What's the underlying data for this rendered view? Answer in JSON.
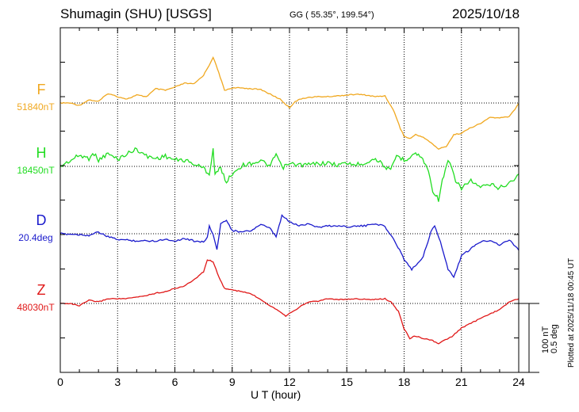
{
  "header": {
    "station": "Shumagin (SHU)  [USGS]",
    "coords": "GG ( 55.35°, 199.54°)",
    "date": "2025/10/18"
  },
  "footer": {
    "plotted": "Plotted at 2025/11/18 00:45 UT"
  },
  "chart_data": {
    "type": "line",
    "xlabel": "U T (hour)",
    "xlim": [
      0,
      24
    ],
    "xticks": [
      0,
      3,
      6,
      9,
      12,
      15,
      18,
      21,
      24
    ],
    "scale_bar": {
      "line1": "100 nT",
      "line2": "0.5 deg"
    },
    "colors": {
      "F": "#f0a820",
      "H": "#22dd22",
      "D": "#1a1acc",
      "Z": "#e01818"
    },
    "series": [
      {
        "name": "F",
        "baseline_label": "51840nT",
        "points": [
          [
            0,
            0
          ],
          [
            0.5,
            0
          ],
          [
            1,
            3
          ],
          [
            1.5,
            -4
          ],
          [
            2,
            -2
          ],
          [
            2.5,
            -12
          ],
          [
            3,
            -8
          ],
          [
            3.5,
            -5
          ],
          [
            4,
            -10
          ],
          [
            4.5,
            -8
          ],
          [
            5,
            -18
          ],
          [
            5.5,
            -16
          ],
          [
            6,
            -20
          ],
          [
            6.5,
            -25
          ],
          [
            7,
            -24
          ],
          [
            7.5,
            -35
          ],
          [
            7.8,
            -48
          ],
          [
            8,
            -58
          ],
          [
            8.3,
            -38
          ],
          [
            8.6,
            -16
          ],
          [
            9,
            -19
          ],
          [
            9.5,
            -19
          ],
          [
            10,
            -18
          ],
          [
            10.5,
            -17
          ],
          [
            11,
            -11
          ],
          [
            11.5,
            -5
          ],
          [
            12,
            6
          ],
          [
            12.3,
            -2
          ],
          [
            12.7,
            -6
          ],
          [
            13,
            -7
          ],
          [
            13.5,
            -8
          ],
          [
            14,
            -8
          ],
          [
            14.5,
            -9
          ],
          [
            15,
            -10
          ],
          [
            15.5,
            -11
          ],
          [
            16,
            -10
          ],
          [
            16.5,
            -8
          ],
          [
            17,
            -9
          ],
          [
            17.2,
            -1
          ],
          [
            17.5,
            12
          ],
          [
            17.8,
            32
          ],
          [
            18,
            42
          ],
          [
            18.3,
            45
          ],
          [
            18.6,
            40
          ],
          [
            19,
            43
          ],
          [
            19.5,
            52
          ],
          [
            19.8,
            58
          ],
          [
            20.2,
            55
          ],
          [
            20.6,
            40
          ],
          [
            21,
            38
          ],
          [
            21.5,
            31
          ],
          [
            22,
            26
          ],
          [
            22.5,
            18
          ],
          [
            23,
            19
          ],
          [
            23.5,
            17
          ],
          [
            23.8,
            8
          ],
          [
            24,
            0
          ]
        ]
      },
      {
        "name": "H",
        "baseline_label": "18450nT",
        "points": [
          [
            0,
            0
          ],
          [
            0.5,
            -7
          ],
          [
            1,
            -14
          ],
          [
            1.5,
            -10
          ],
          [
            1.7,
            -18
          ],
          [
            2,
            -8
          ],
          [
            2.5,
            -16
          ],
          [
            3,
            -9
          ],
          [
            3.5,
            -16
          ],
          [
            4,
            -22
          ],
          [
            4.5,
            -13
          ],
          [
            5,
            -10
          ],
          [
            5.5,
            -13
          ],
          [
            6,
            -8
          ],
          [
            6.5,
            -8
          ],
          [
            7,
            -3
          ],
          [
            7.5,
            2
          ],
          [
            7.8,
            10
          ],
          [
            8,
            -22
          ],
          [
            8.1,
            10
          ],
          [
            8.4,
            2
          ],
          [
            8.7,
            20
          ],
          [
            9,
            9
          ],
          [
            9.5,
            -1
          ],
          [
            10,
            -4
          ],
          [
            10.5,
            -7
          ],
          [
            11,
            0
          ],
          [
            11.3,
            -16
          ],
          [
            11.6,
            2
          ],
          [
            12,
            -3
          ],
          [
            12.5,
            -2
          ],
          [
            13,
            -2
          ],
          [
            13.5,
            -4
          ],
          [
            14,
            -4
          ],
          [
            14.5,
            -2
          ],
          [
            15,
            -4
          ],
          [
            15.5,
            -2
          ],
          [
            16,
            -5
          ],
          [
            16.5,
            -10
          ],
          [
            17,
            0
          ],
          [
            17.3,
            6
          ],
          [
            17.6,
            -14
          ],
          [
            18,
            -8
          ],
          [
            18.3,
            -12
          ],
          [
            18.6,
            -17
          ],
          [
            18.9,
            -11
          ],
          [
            19.2,
            0
          ],
          [
            19.5,
            30
          ],
          [
            19.8,
            42
          ],
          [
            20,
            18
          ],
          [
            20.3,
            -6
          ],
          [
            20.5,
            2
          ],
          [
            20.7,
            20
          ],
          [
            21,
            27
          ],
          [
            21.5,
            18
          ],
          [
            22,
            27
          ],
          [
            22.5,
            23
          ],
          [
            23,
            27
          ],
          [
            23.5,
            21
          ],
          [
            24,
            11
          ]
        ]
      },
      {
        "name": "D",
        "baseline_label": "20.4deg",
        "points": [
          [
            0,
            0
          ],
          [
            1,
            1
          ],
          [
            1.5,
            2
          ],
          [
            2,
            -2
          ],
          [
            2.5,
            4
          ],
          [
            3,
            7
          ],
          [
            3.5,
            8
          ],
          [
            4,
            9
          ],
          [
            5,
            9
          ],
          [
            5.5,
            7
          ],
          [
            6,
            9
          ],
          [
            6.5,
            6
          ],
          [
            7,
            9
          ],
          [
            7.5,
            10
          ],
          [
            7.7,
            5
          ],
          [
            7.8,
            -10
          ],
          [
            8,
            2
          ],
          [
            8.2,
            19
          ],
          [
            8.4,
            -12
          ],
          [
            8.7,
            -18
          ],
          [
            9,
            -4
          ],
          [
            9.5,
            -2
          ],
          [
            10,
            -4
          ],
          [
            10.5,
            -12
          ],
          [
            11,
            -6
          ],
          [
            11.3,
            4
          ],
          [
            11.6,
            -23
          ],
          [
            12,
            -15
          ],
          [
            12.5,
            -10
          ],
          [
            13,
            -13
          ],
          [
            13.5,
            -8
          ],
          [
            14,
            -10
          ],
          [
            14.5,
            -10
          ],
          [
            15,
            -9
          ],
          [
            16,
            -10
          ],
          [
            16.5,
            -13
          ],
          [
            17,
            -9
          ],
          [
            17.3,
            2
          ],
          [
            17.6,
            13
          ],
          [
            18,
            32
          ],
          [
            18.4,
            45
          ],
          [
            18.8,
            35
          ],
          [
            19,
            28
          ],
          [
            19.4,
            -2
          ],
          [
            19.6,
            -10
          ],
          [
            19.9,
            10
          ],
          [
            20.3,
            45
          ],
          [
            20.6,
            55
          ],
          [
            21,
            28
          ],
          [
            21.5,
            19
          ],
          [
            22,
            10
          ],
          [
            22.5,
            8
          ],
          [
            23,
            14
          ],
          [
            23.5,
            8
          ],
          [
            24,
            20
          ]
        ]
      },
      {
        "name": "Z",
        "baseline_label": "48030nT",
        "points": [
          [
            0,
            0
          ],
          [
            0.5,
            0
          ],
          [
            1,
            3
          ],
          [
            1.5,
            -4
          ],
          [
            2,
            -2
          ],
          [
            2.5,
            -6
          ],
          [
            3,
            -6
          ],
          [
            3.5,
            -6
          ],
          [
            4,
            -8
          ],
          [
            4.5,
            -10
          ],
          [
            5,
            -13
          ],
          [
            5.5,
            -15
          ],
          [
            6,
            -19
          ],
          [
            6.5,
            -22
          ],
          [
            7,
            -30
          ],
          [
            7.5,
            -40
          ],
          [
            7.7,
            -55
          ],
          [
            8,
            -53
          ],
          [
            8.3,
            -33
          ],
          [
            8.6,
            -19
          ],
          [
            9,
            -17
          ],
          [
            9.5,
            -15
          ],
          [
            10,
            -12
          ],
          [
            10.5,
            -5
          ],
          [
            11,
            3
          ],
          [
            11.5,
            10
          ],
          [
            11.8,
            16
          ],
          [
            12,
            12
          ],
          [
            12.3,
            8
          ],
          [
            12.7,
            2
          ],
          [
            13,
            -2
          ],
          [
            13.5,
            -3
          ],
          [
            14,
            -6
          ],
          [
            14.5,
            -5
          ],
          [
            15,
            -5
          ],
          [
            15.5,
            -6
          ],
          [
            16,
            -5
          ],
          [
            16.5,
            -5
          ],
          [
            17,
            -6
          ],
          [
            17.3,
            -2
          ],
          [
            17.7,
            10
          ],
          [
            18,
            32
          ],
          [
            18.3,
            44
          ],
          [
            18.6,
            41
          ],
          [
            19,
            44
          ],
          [
            19.5,
            47
          ],
          [
            19.8,
            51
          ],
          [
            20,
            48
          ],
          [
            20.5,
            42
          ],
          [
            21,
            31
          ],
          [
            21.5,
            25
          ],
          [
            22,
            19
          ],
          [
            22.5,
            13
          ],
          [
            23,
            8
          ],
          [
            23.5,
            -2
          ],
          [
            24,
            -6
          ]
        ]
      }
    ]
  }
}
